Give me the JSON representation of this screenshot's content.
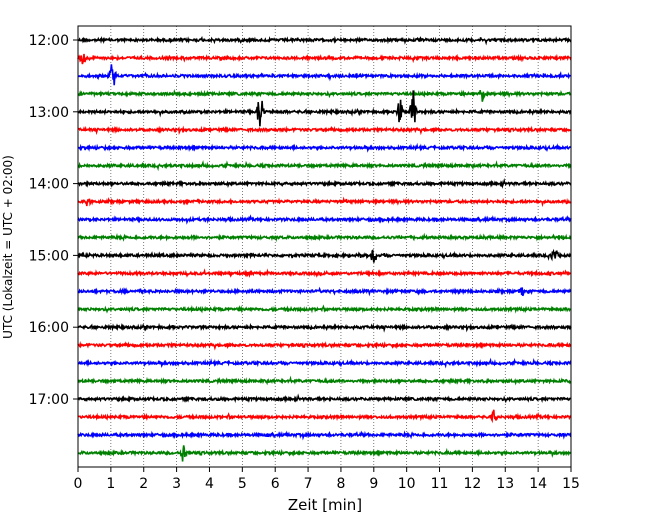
{
  "chart_data": {
    "type": "line",
    "title": "",
    "xlabel": "Zeit  [min]",
    "ylabel": "UTC (Lokalzeit = UTC + 02:00)",
    "xlim": [
      0,
      15
    ],
    "x_ticks": [
      0,
      1,
      2,
      3,
      4,
      5,
      6,
      7,
      8,
      9,
      10,
      11,
      12,
      13,
      14,
      15
    ],
    "x_tick_labels": [
      "0",
      "1",
      "2",
      "3",
      "4",
      "5",
      "6",
      "7",
      "8",
      "9",
      "10",
      "11",
      "12",
      "13",
      "14",
      "15"
    ],
    "x_grid": true,
    "y_tick_labels": [
      "12:00",
      "13:00",
      "14:00",
      "15:00",
      "16:00",
      "17:00"
    ],
    "y_tick_rows": [
      0,
      4,
      8,
      12,
      16,
      20
    ],
    "trace_colors": [
      "#000000",
      "#ff0000",
      "#0000ff",
      "#008000"
    ],
    "rows": [
      {
        "start": "12:00",
        "color": "#000000"
      },
      {
        "start": "12:15",
        "color": "#ff0000"
      },
      {
        "start": "12:30",
        "color": "#0000ff"
      },
      {
        "start": "12:45",
        "color": "#008000"
      },
      {
        "start": "13:00",
        "color": "#000000"
      },
      {
        "start": "13:15",
        "color": "#ff0000"
      },
      {
        "start": "13:30",
        "color": "#0000ff"
      },
      {
        "start": "13:45",
        "color": "#008000"
      },
      {
        "start": "14:00",
        "color": "#000000"
      },
      {
        "start": "14:15",
        "color": "#ff0000"
      },
      {
        "start": "14:30",
        "color": "#0000ff"
      },
      {
        "start": "14:45",
        "color": "#008000"
      },
      {
        "start": "15:00",
        "color": "#000000"
      },
      {
        "start": "15:15",
        "color": "#ff0000"
      },
      {
        "start": "15:30",
        "color": "#0000ff"
      },
      {
        "start": "15:45",
        "color": "#008000"
      },
      {
        "start": "16:00",
        "color": "#000000"
      },
      {
        "start": "16:15",
        "color": "#ff0000"
      },
      {
        "start": "16:30",
        "color": "#0000ff"
      },
      {
        "start": "16:45",
        "color": "#008000"
      },
      {
        "start": "17:00",
        "color": "#000000"
      },
      {
        "start": "17:15",
        "color": "#ff0000"
      },
      {
        "start": "17:30",
        "color": "#0000ff"
      },
      {
        "start": "17:45",
        "color": "#008000"
      }
    ],
    "events": [
      {
        "row": 1,
        "x": 0.15,
        "amp": 0.6
      },
      {
        "row": 2,
        "x": 1.05,
        "amp": 1.2
      },
      {
        "row": 4,
        "x": 5.55,
        "amp": 1.8
      },
      {
        "row": 4,
        "x": 9.8,
        "amp": 0.8
      },
      {
        "row": 4,
        "x": 10.2,
        "amp": 1.2
      },
      {
        "row": 3,
        "x": 12.3,
        "amp": 0.5
      },
      {
        "row": 12,
        "x": 9.0,
        "amp": 0.5
      },
      {
        "row": 12,
        "x": 14.5,
        "amp": 0.5
      },
      {
        "row": 21,
        "x": 12.65,
        "amp": 0.6
      },
      {
        "row": 23,
        "x": 3.2,
        "amp": 0.6
      },
      {
        "row": 9,
        "x": 0.3,
        "amp": 0.4
      },
      {
        "row": 14,
        "x": 13.5,
        "amp": 0.4
      }
    ]
  }
}
